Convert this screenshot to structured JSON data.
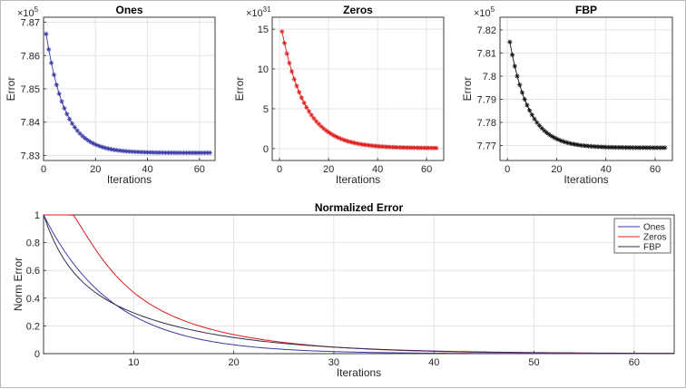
{
  "chart_data": [
    {
      "type": "line",
      "title": "Ones",
      "xlabel": "Iterations",
      "ylabel": "Error",
      "y_exponent": "×10",
      "y_exponent_power": "5",
      "xlim": [
        0,
        66
      ],
      "ylim": [
        7.8285,
        7.8715
      ],
      "xticks": [
        0,
        20,
        40,
        60
      ],
      "yticks": [
        7.83,
        7.84,
        7.85,
        7.86,
        7.87
      ],
      "ytick_labels": [
        "7.83",
        "7.84",
        "7.85",
        "7.86",
        "7.87"
      ],
      "grid": true,
      "color": "#3a3aa8",
      "marker": "asterisk",
      "n_points": 64,
      "start_value": 7.8665,
      "end_value": 7.8308,
      "decay_rate": 0.14
    },
    {
      "type": "line",
      "title": "Zeros",
      "xlabel": "Iterations",
      "ylabel": "Error",
      "y_exponent": "×10",
      "y_exponent_power": "31",
      "xlim": [
        -3,
        67
      ],
      "ylim": [
        -1.5,
        16.5
      ],
      "xticks": [
        0,
        20,
        40,
        60
      ],
      "yticks": [
        0,
        5,
        10,
        15
      ],
      "ytick_labels": [
        "0",
        "5",
        "10",
        "15"
      ],
      "grid": true,
      "color": "#e01c1c",
      "marker": "asterisk",
      "n_points": 64,
      "start_value": 14.7,
      "end_value": 0.05,
      "decay_rate": 0.105
    },
    {
      "type": "line",
      "title": "FBP",
      "xlabel": "Iterations",
      "ylabel": "Error",
      "y_exponent": "×10",
      "y_exponent_power": "5",
      "xlim": [
        -3,
        67
      ],
      "ylim": [
        7.7635,
        7.8255
      ],
      "xticks": [
        0,
        20,
        40,
        60
      ],
      "yticks": [
        7.77,
        7.78,
        7.79,
        7.8,
        7.81,
        7.82
      ],
      "ytick_labels": [
        "7.77",
        "7.78",
        "7.79",
        "7.8",
        "7.81",
        "7.82"
      ],
      "grid": true,
      "color": "#111111",
      "marker": "asterisk",
      "n_points": 64,
      "start_value": 7.8148,
      "end_value": 7.769,
      "decay_rate": 0.13
    },
    {
      "type": "line",
      "title": "Normalized Error",
      "xlabel": "Iterations",
      "ylabel": "Norm Error",
      "xlim": [
        1,
        64
      ],
      "ylim": [
        0,
        1
      ],
      "xticks": [
        10,
        20,
        30,
        40,
        50,
        60
      ],
      "yticks": [
        0,
        0.2,
        0.4,
        0.6,
        0.8,
        1
      ],
      "ytick_labels": [
        "0",
        "0.2",
        "0.4",
        "0.6",
        "0.8",
        "1"
      ],
      "grid": true,
      "legend": "top-right",
      "series": [
        {
          "name": "Ones",
          "color": "#3a3aa8",
          "decay_rate": 0.145
        },
        {
          "name": "Zeros",
          "color": "#e01c1c",
          "decay_rate": 0.105
        },
        {
          "name": "FBP",
          "color": "#2e2e4e",
          "decay_rate": 0.103
        }
      ]
    }
  ]
}
